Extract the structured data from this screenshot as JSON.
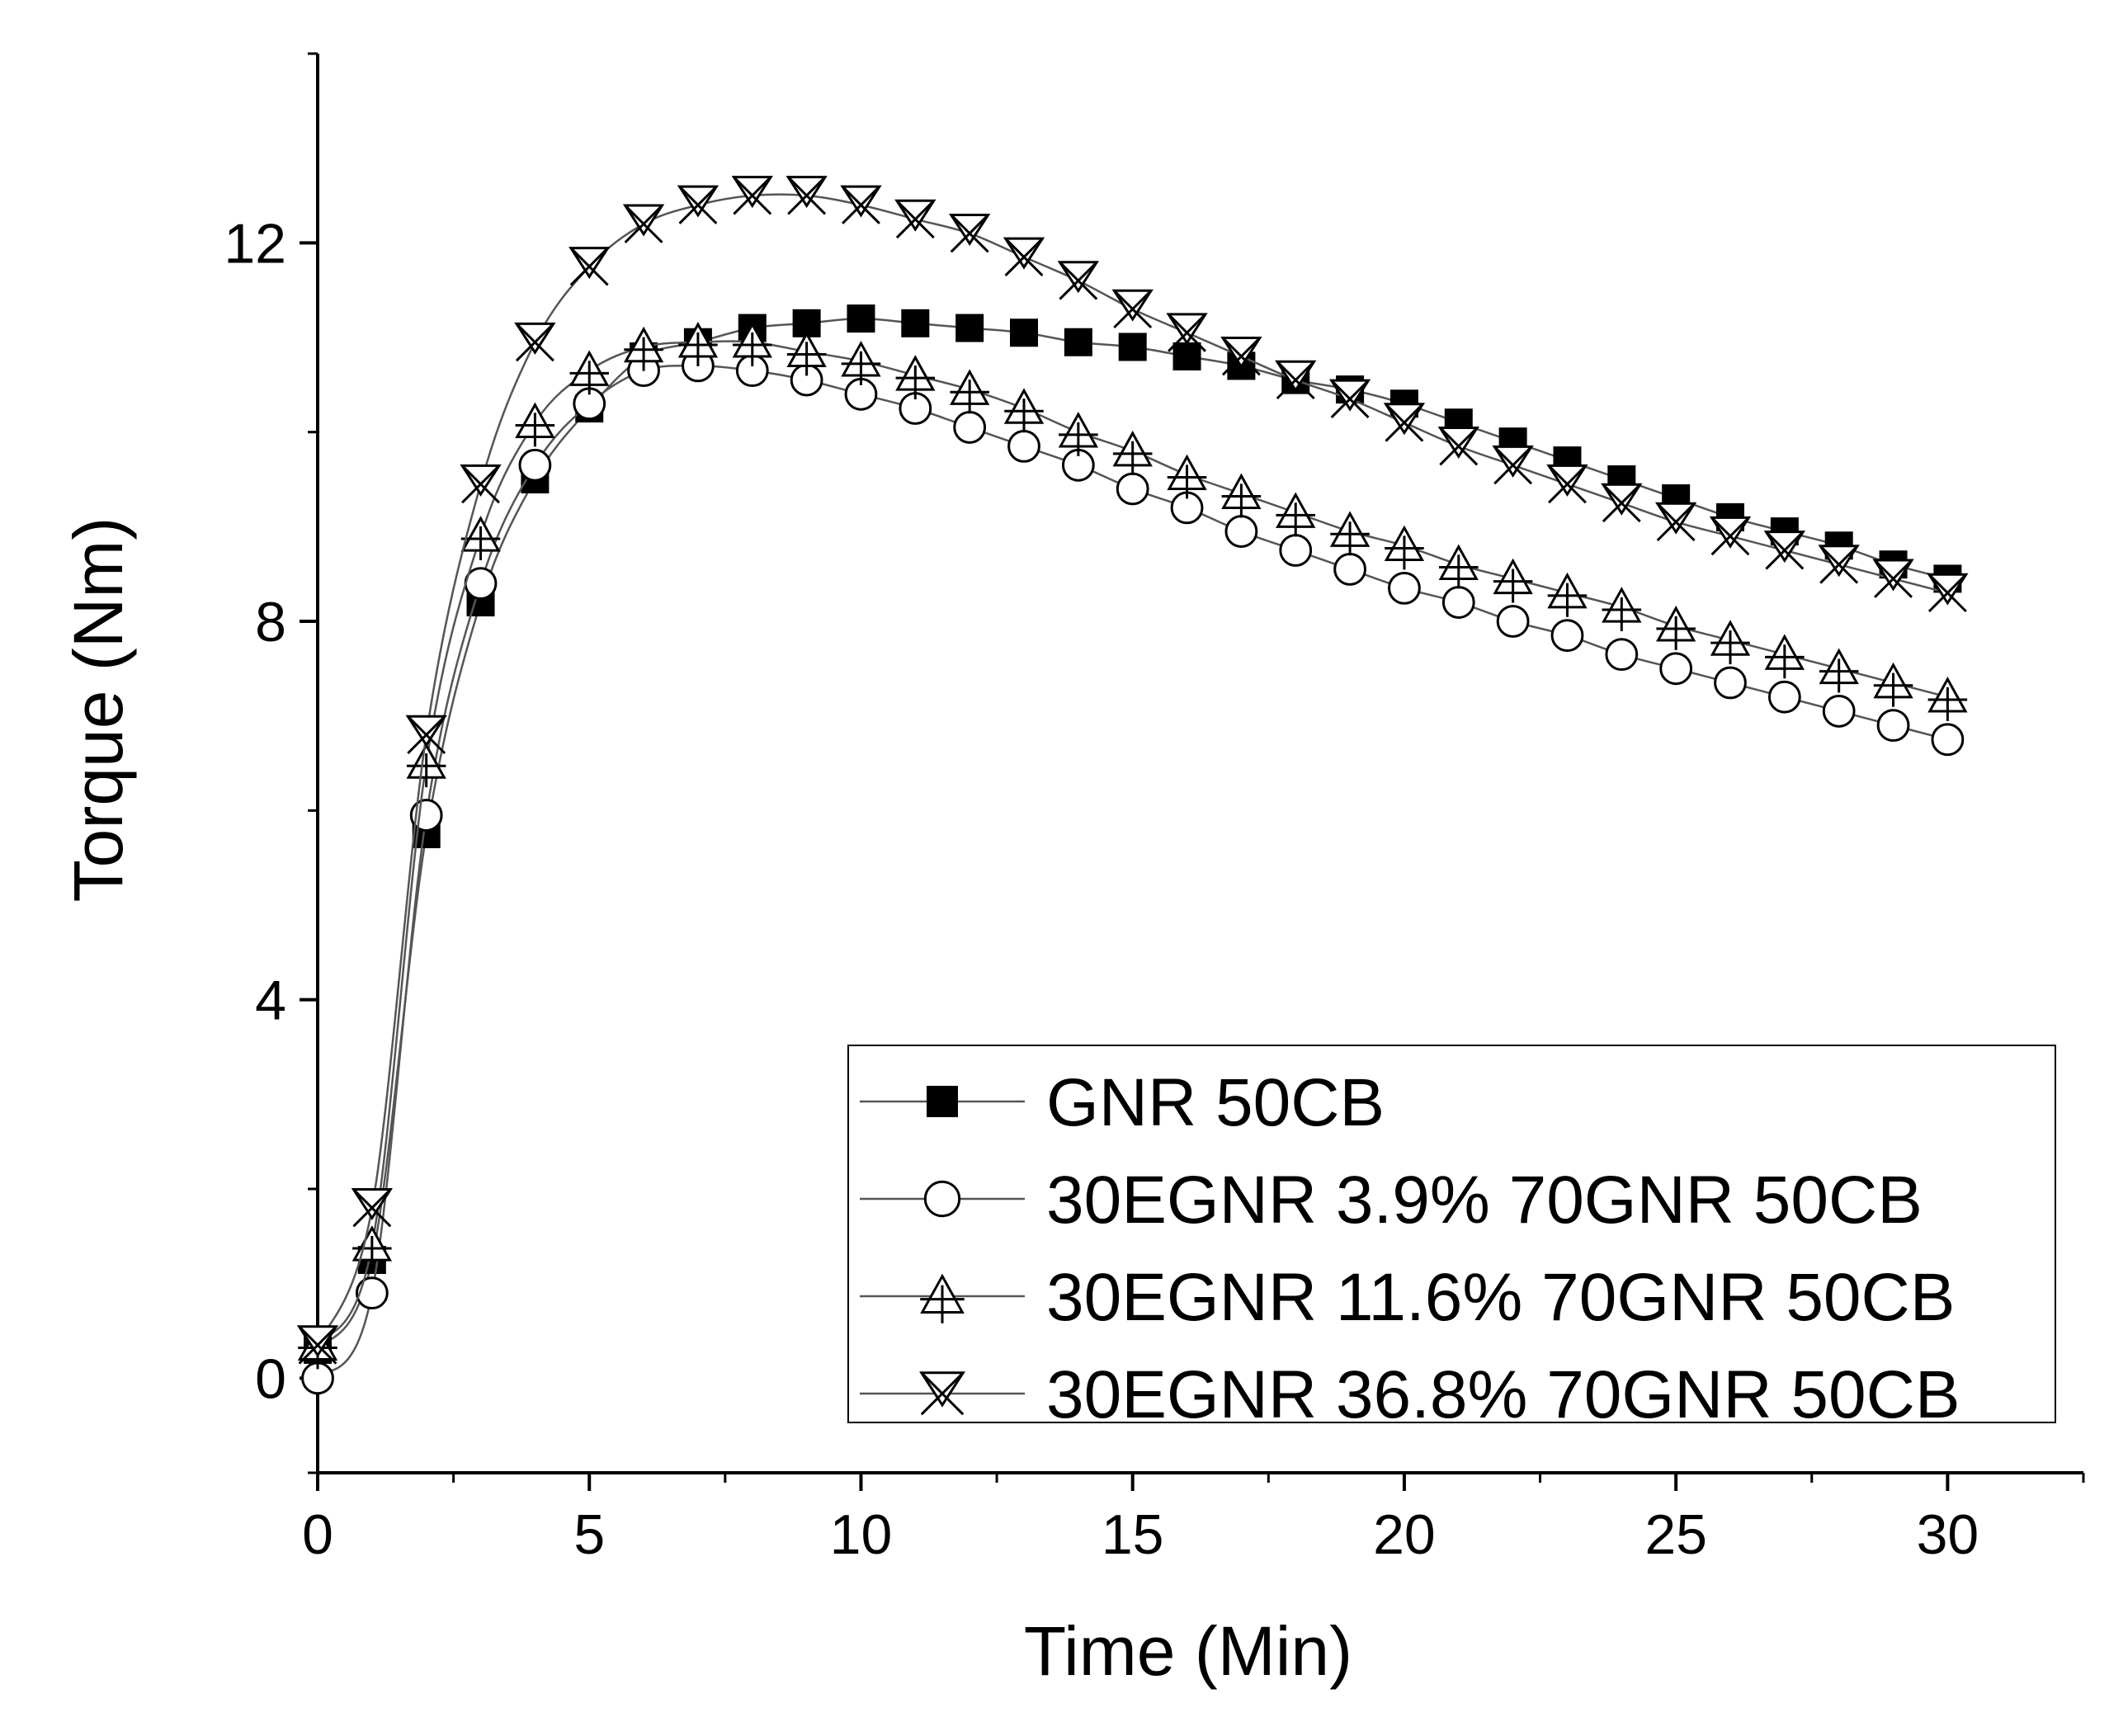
{
  "chart_data": {
    "type": "line",
    "title": "",
    "xlabel": "Time (Min)",
    "ylabel": "Torque (Nm)",
    "xlim": [
      0,
      32.5
    ],
    "ylim": [
      -1,
      14
    ],
    "x_ticks": [
      0,
      5,
      10,
      15,
      20,
      25,
      30
    ],
    "y_ticks": [
      0,
      4,
      8,
      12
    ],
    "x": [
      0,
      1,
      2,
      3,
      4,
      5,
      6,
      7,
      8,
      9,
      10,
      11,
      12,
      13,
      14,
      15,
      16,
      17,
      18,
      19,
      20,
      21,
      22,
      23,
      24,
      25,
      26,
      27,
      28,
      29,
      30
    ],
    "series": [
      {
        "name": "GNR 50CB",
        "marker": "square-filled",
        "values": [
          0.3,
          1.25,
          5.75,
          8.2,
          9.5,
          10.25,
          10.8,
          10.95,
          11.1,
          11.15,
          11.2,
          11.15,
          11.1,
          11.05,
          10.95,
          10.9,
          10.8,
          10.7,
          10.55,
          10.45,
          10.3,
          10.1,
          9.9,
          9.7,
          9.5,
          9.3,
          9.1,
          8.95,
          8.8,
          8.6,
          8.45
        ]
      },
      {
        "name": "30EGNR 3.9% 70GNR 50CB",
        "marker": "circle-open",
        "values": [
          0.0,
          0.9,
          5.95,
          8.4,
          9.65,
          10.3,
          10.65,
          10.7,
          10.65,
          10.55,
          10.4,
          10.25,
          10.05,
          9.85,
          9.65,
          9.4,
          9.2,
          8.95,
          8.75,
          8.55,
          8.35,
          8.2,
          8.0,
          7.85,
          7.65,
          7.5,
          7.35,
          7.2,
          7.05,
          6.9,
          6.75
        ]
      },
      {
        "name": "30EGNR 11.6% 70GNR 50CB",
        "marker": "triangle-cross",
        "values": [
          0.35,
          1.4,
          6.5,
          8.9,
          10.1,
          10.65,
          10.9,
          10.95,
          10.95,
          10.85,
          10.75,
          10.6,
          10.45,
          10.25,
          10.0,
          9.8,
          9.55,
          9.35,
          9.15,
          8.95,
          8.8,
          8.6,
          8.45,
          8.3,
          8.15,
          7.95,
          7.8,
          7.65,
          7.5,
          7.35,
          7.2
        ]
      },
      {
        "name": "30EGNR 36.8% 70GNR 50CB",
        "marker": "hourglass",
        "values": [
          0.35,
          1.8,
          6.8,
          9.45,
          10.95,
          11.75,
          12.2,
          12.4,
          12.5,
          12.5,
          12.4,
          12.25,
          12.1,
          11.85,
          11.6,
          11.3,
          11.05,
          10.8,
          10.55,
          10.35,
          10.1,
          9.85,
          9.65,
          9.45,
          9.25,
          9.05,
          8.9,
          8.75,
          8.6,
          8.45,
          8.3
        ]
      }
    ],
    "legend": {
      "position": "bottom-right"
    },
    "grid": false,
    "colors": {
      "line": "#555555",
      "marker": "#000000",
      "fill": "#000000",
      "background": "#ffffff"
    }
  }
}
